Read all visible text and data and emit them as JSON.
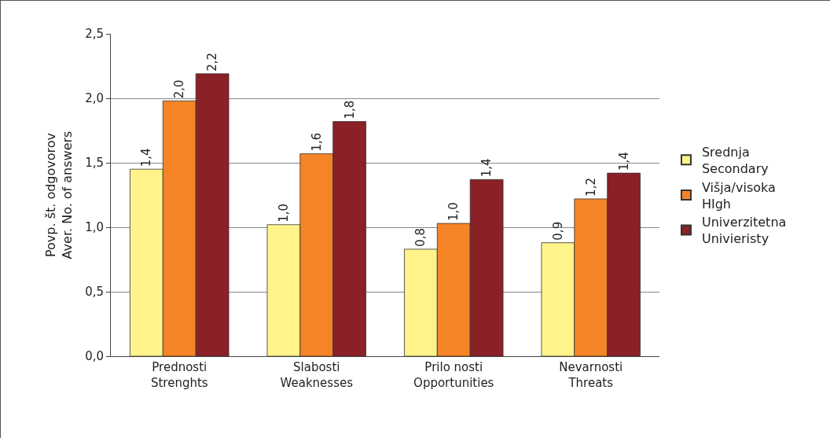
{
  "chart_data": {
    "type": "bar",
    "ylabel": "Povp. št. odgovorov\nAver. No. of answers",
    "categories": [
      "Prednosti\nStrenghts",
      "Slabosti\nWeaknesses",
      "Prilo nosti\nOpportunities",
      "Nevarnosti\nThreats"
    ],
    "series": [
      {
        "name": "Srednja\nSecondary",
        "color": "#fff38a",
        "values": [
          1.45,
          1.02,
          0.83,
          0.88
        ],
        "value_labels": [
          "1,4",
          "1,0",
          "0,8",
          "0,9"
        ]
      },
      {
        "name": "Višja/visoka\nHIgh",
        "color": "#f58426",
        "values": [
          1.98,
          1.57,
          1.03,
          1.22
        ],
        "value_labels": [
          "2,0",
          "1,6",
          "1,0",
          "1,2"
        ]
      },
      {
        "name": "Univerzitetna\nUnivieristy",
        "color": "#8b2027",
        "values": [
          2.19,
          1.82,
          1.37,
          1.42
        ],
        "value_labels": [
          "2,2",
          "1,8",
          "1,4",
          "1,4"
        ]
      }
    ],
    "ylim": [
      0,
      2.5
    ],
    "yticks": [
      {
        "value": 0,
        "label": "0,0"
      },
      {
        "value": 0.5,
        "label": "0,5"
      },
      {
        "value": 1,
        "label": "1,0"
      },
      {
        "value": 1.5,
        "label": "1,5"
      },
      {
        "value": 2,
        "label": "2,0"
      },
      {
        "value": 2.5,
        "label": "2,5"
      }
    ],
    "grid": "y",
    "legend": "right"
  }
}
